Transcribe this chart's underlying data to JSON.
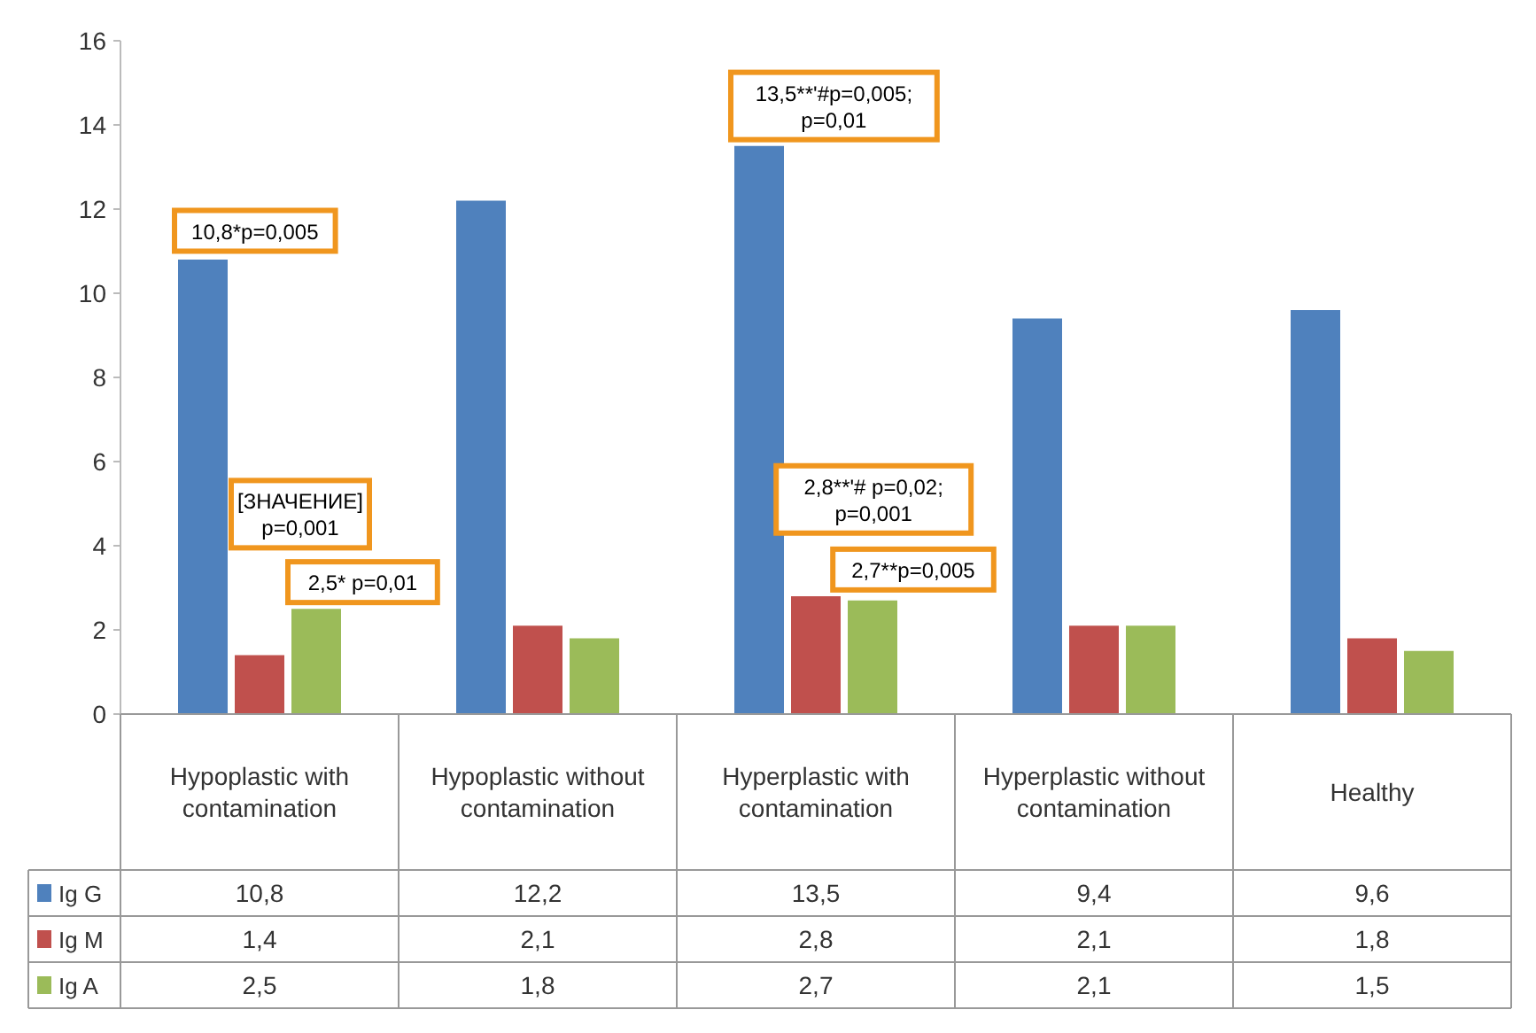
{
  "chart_data": {
    "type": "bar",
    "categories": [
      "Hypoplastic with contamination",
      "Hypoplastic without contamination",
      "Hyperplastic with contamination",
      "Hyperplastic without contamination",
      "Healthy"
    ],
    "series": [
      {
        "name": "Ig G",
        "color": "#4f81bd",
        "values": [
          10.8,
          12.2,
          13.5,
          9.4,
          9.6
        ],
        "value_labels": [
          "10,8",
          "12,2",
          "13,5",
          "9,4",
          "9,6"
        ]
      },
      {
        "name": "Ig M",
        "color": "#c0504d",
        "values": [
          1.4,
          2.1,
          2.8,
          2.1,
          1.8
        ],
        "value_labels": [
          "1,4",
          "2,1",
          "2,8",
          "2,1",
          "1,8"
        ]
      },
      {
        "name": "Ig A",
        "color": "#9bbb59",
        "values": [
          2.5,
          1.8,
          2.7,
          2.1,
          1.5
        ],
        "value_labels": [
          "2,5",
          "1,8",
          "2,7",
          "2,1",
          "1,5"
        ]
      }
    ],
    "ylim": [
      0,
      16
    ],
    "yticks": [
      0,
      2,
      4,
      6,
      8,
      10,
      12,
      14,
      16
    ],
    "legend": "bottom",
    "annotations": [
      "10,8*p=0,005",
      "2,5* p=0,01",
      "[ЗНАЧЕНИЕ]\np=0,001",
      "13,5**'#p=0,005;\np=0,01",
      "2,7**p=0,005",
      "2,8**'# p=0,02;\np=0,001"
    ]
  }
}
